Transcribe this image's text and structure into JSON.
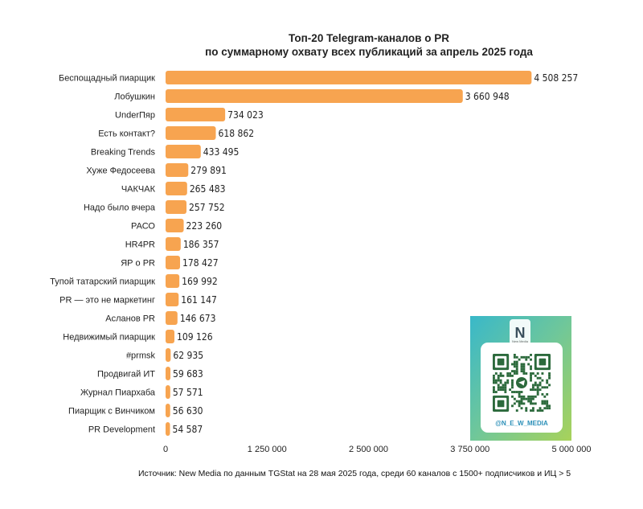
{
  "chart_data": {
    "type": "bar",
    "orientation": "horizontal",
    "title_line1": "Топ-20 Telegram-каналов о PR",
    "title_line2": "по суммарному охвату всех публикаций за апрель 2025 года",
    "categories": [
      "Беспощадный пиарщик",
      "Лобушкин",
      "UnderПяр",
      "Есть контакт?",
      "Breaking Trends",
      "Хуже Федосеева",
      "ЧАКЧАК",
      "Надо было вчера",
      "РАСО",
      "HR4PR",
      "ЯР о PR",
      "Тупой татарский пиарщик",
      "PR — это не маркетинг",
      "Асланов PR",
      "Недвижимый пиарщик",
      "#prmsk",
      "Продвигай ИТ",
      "Журнал Пиархаба",
      "Пиарщик с Винчиком",
      "PR Development"
    ],
    "values": [
      4508257,
      3660948,
      734023,
      618862,
      433495,
      279891,
      265483,
      257752,
      223260,
      186357,
      178427,
      169992,
      161147,
      146673,
      109126,
      62935,
      59683,
      57571,
      56630,
      54587
    ],
    "value_labels": [
      "4 508 257",
      "3 660 948",
      "734 023",
      "618 862",
      "433 495",
      "279 891",
      "265 483",
      "257 752",
      "223 260",
      "186 357",
      "178 427",
      "169 992",
      "161 147",
      "146 673",
      "109 126",
      "62 935",
      "59 683",
      "57 571",
      "56 630",
      "54 587"
    ],
    "xlim": [
      0,
      5000000
    ],
    "xticks": [
      0,
      1250000,
      2500000,
      3750000,
      5000000
    ],
    "xtick_labels": [
      "0",
      "1 250 000",
      "2 500 000",
      "3 750 000",
      "5 000 000"
    ],
    "grid": false,
    "bar_color": "#f7a450"
  },
  "source_text": "Источник: New Media по данным TGStat на 28 мая 2025 года, среди 60 каналов с 1500+ подписчиков и ИЦ > 5",
  "qr_card": {
    "handle": "@N_E_W_MEDIA",
    "logo_letter": "N",
    "logo_caption": "New Media"
  }
}
